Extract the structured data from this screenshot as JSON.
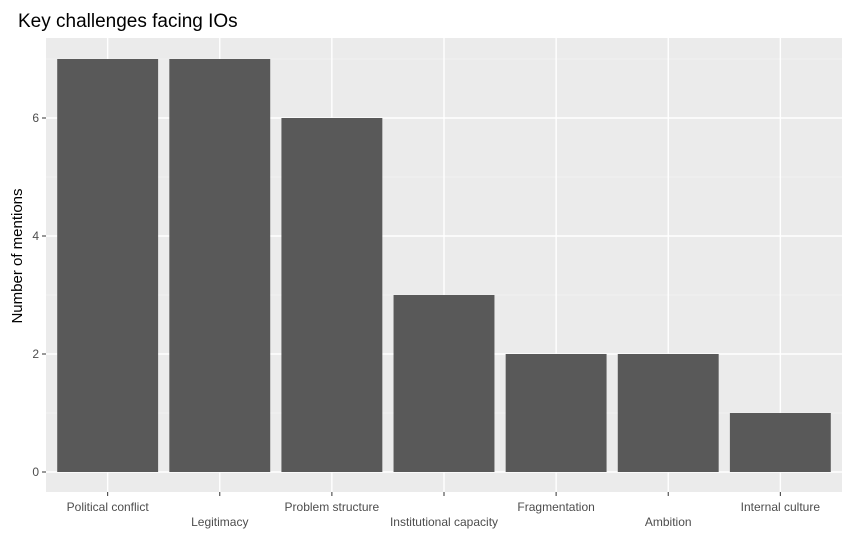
{
  "chart_data": {
    "type": "bar",
    "title": "Key challenges facing IOs",
    "xlabel": "",
    "ylabel": "Number of mentions",
    "categories": [
      "Political conflict",
      "Legitimacy",
      "Problem structure",
      "Institutional capacity",
      "Fragmentation",
      "Ambition",
      "Internal culture"
    ],
    "values": [
      7,
      7,
      6,
      3,
      2,
      2,
      1
    ],
    "ylim": [
      0,
      7.3
    ],
    "yticks": [
      0,
      2,
      4,
      6
    ],
    "grid": true,
    "legend": "none",
    "colors": {
      "bar": "#595959",
      "panel": "#ebebeb",
      "grid_major": "#ffffff",
      "grid_minor": "#f5f5f5",
      "text": "#4d4d4d",
      "title": "#000000"
    }
  }
}
